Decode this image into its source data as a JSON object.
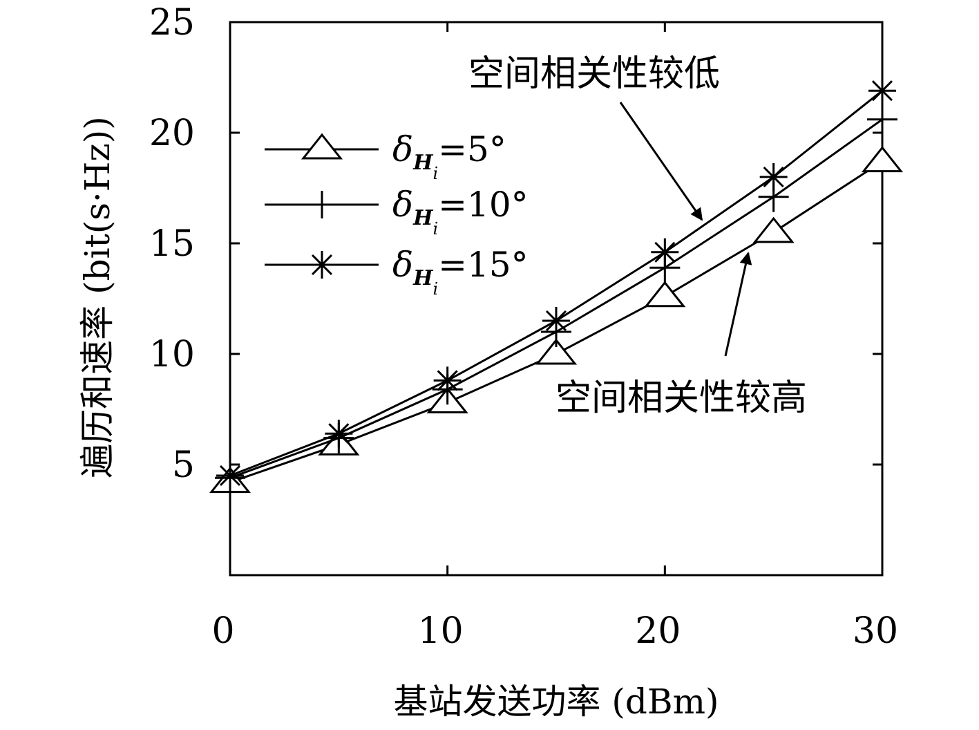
{
  "chart_data": {
    "type": "line",
    "title": "",
    "xlabel": "基站发送功率 (dBm)",
    "ylabel": "遍历和速率 (bit(s·Hz))",
    "xlim": [
      0,
      30
    ],
    "ylim": [
      0,
      25
    ],
    "xticks": [
      0,
      10,
      20,
      30
    ],
    "yticks": [
      5,
      10,
      15,
      20,
      25
    ],
    "x": [
      0,
      5,
      10,
      15,
      20,
      25,
      30
    ],
    "series": [
      {
        "name": "δHi=5°",
        "marker": "triangle",
        "values": [
          4.2,
          5.9,
          7.8,
          10.0,
          12.6,
          15.5,
          18.7
        ]
      },
      {
        "name": "δHi=10°",
        "marker": "plus",
        "values": [
          4.4,
          6.2,
          8.4,
          11.0,
          13.9,
          17.1,
          20.6
        ]
      },
      {
        "name": "δHi=15°",
        "marker": "asterisk",
        "values": [
          4.5,
          6.4,
          8.8,
          11.5,
          14.6,
          18.0,
          21.9
        ]
      }
    ],
    "legend": {
      "placement": "top-left",
      "entries": [
        {
          "symbol": "δ",
          "sub": "H",
          "subsub": "i",
          "value": "=5°"
        },
        {
          "symbol": "δ",
          "sub": "H",
          "subsub": "i",
          "value": "=10°"
        },
        {
          "symbol": "δ",
          "sub": "H",
          "subsub": "i",
          "value": "=15°"
        }
      ]
    },
    "annotations": [
      {
        "text": "空间相关性较低"
      },
      {
        "text": "空间相关性较高"
      }
    ],
    "grid": false
  }
}
